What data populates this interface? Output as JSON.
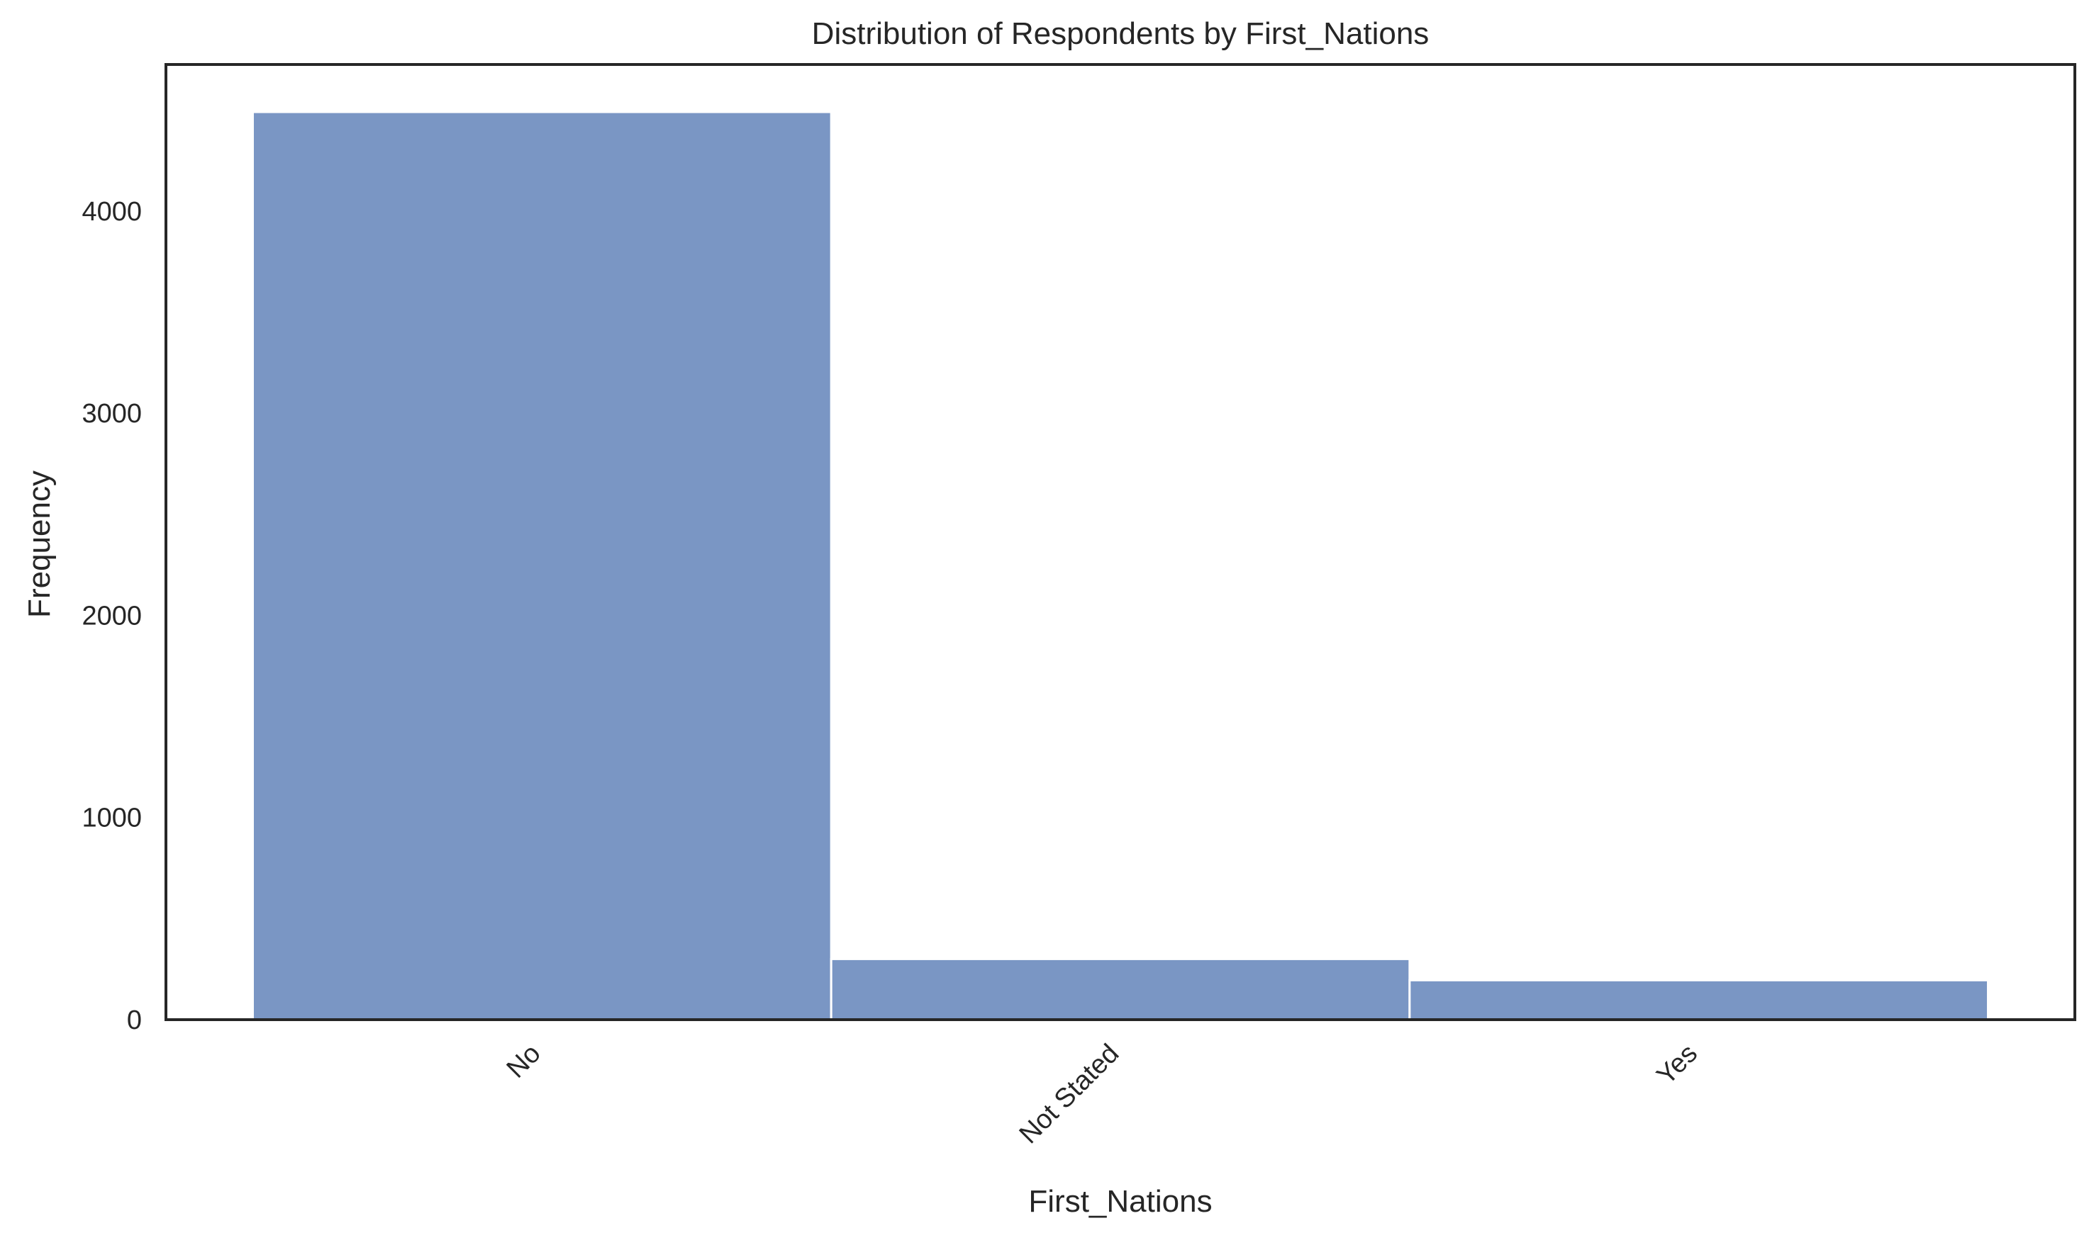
{
  "chart_data": {
    "type": "bar",
    "title": "Distribution of Respondents by First_Nations",
    "xlabel": "First_Nations",
    "ylabel": "Frequency",
    "categories": [
      "No",
      "Not Stated",
      "Yes"
    ],
    "values": [
      4490,
      300,
      195
    ],
    "ylim": [
      0,
      4725
    ],
    "yticks": [
      0,
      1000,
      2000,
      3000,
      4000
    ],
    "grid": false,
    "legend": "none",
    "bar_color": "#7a96c4",
    "bar_edge_color": "#ffffff",
    "frame_color": "#262626"
  }
}
